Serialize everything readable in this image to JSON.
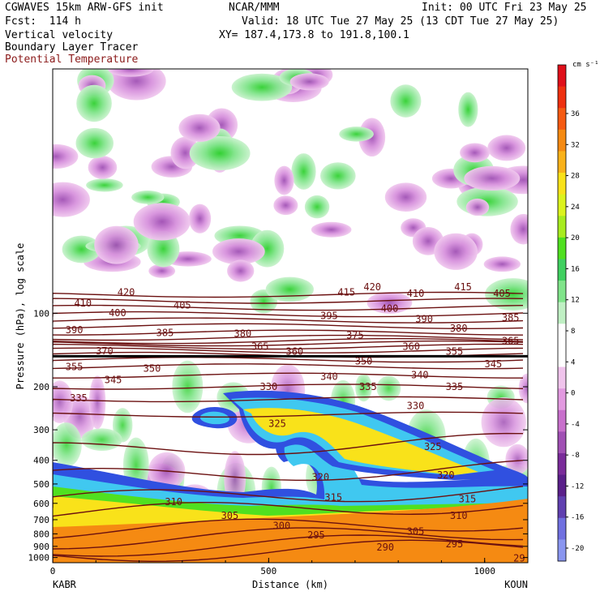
{
  "header": {
    "model": "CGWAVES 15km ARW-GFS init",
    "org": "NCAR/MMM",
    "init": "Init: 00 UTC Fri 23 May 25",
    "fcst": "Fcst:  114 h",
    "valid": "Valid: 18 UTC Tue 27 May 25 (13 CDT Tue 27 May 25)",
    "xy": "XY= 187.4,173.8 to 191.8,100.1",
    "fields": [
      "Vertical velocity",
      "Boundary Layer Tracer",
      "Potential Temperature"
    ],
    "field_colors": [
      "#000000",
      "#000000",
      "#8b1a1a"
    ]
  },
  "chart_data": {
    "type": "heatmap",
    "title": "",
    "xlabel": "Distance (km)",
    "ylabel": "Pressure (hPa), log scale",
    "x_ticks": [
      0,
      500,
      1000
    ],
    "xlim": [
      0,
      1100
    ],
    "y_scale": "log",
    "y_ticks": [
      100,
      200,
      300,
      400,
      500,
      600,
      700,
      800,
      900,
      1000
    ],
    "ylim": [
      1050,
      10
    ],
    "x_end_labels": {
      "left": "KABR",
      "right": "KOUN"
    },
    "colorbar": {
      "units": "cm s⁻¹",
      "tick_labels": [
        36,
        32,
        28,
        24,
        20,
        16,
        12,
        8,
        4,
        0,
        -4,
        -8,
        -12,
        -16,
        -20
      ],
      "colors": [
        "#e0101a",
        "#ee3010",
        "#f55a12",
        "#f58a12",
        "#f9b21a",
        "#f9e21a",
        "#dcf31e",
        "#a8ec20",
        "#50e020",
        "#40d060",
        "#80e48a",
        "#c0f0c4",
        "#ffffff",
        "#ffffff",
        "#f0c4ec",
        "#e29ae0",
        "#c870cc",
        "#a050b4",
        "#7a2c9a",
        "#5a208a",
        "#6040b0",
        "#7070e0",
        "#8a96f0"
      ]
    },
    "theta_contours": [
      {
        "value": 290,
        "p": 980
      },
      {
        "value": 295,
        "p": 925
      },
      {
        "value": 300,
        "p": 855
      },
      {
        "value": 305,
        "p": 780
      },
      {
        "value": 310,
        "p": 660
      },
      {
        "value": 315,
        "p": 580
      },
      {
        "value": 320,
        "p": 470
      },
      {
        "value": 325,
        "p": 365
      },
      {
        "value": 330,
        "p": 260
      },
      {
        "value": 335,
        "p": 225
      },
      {
        "value": 340,
        "p": 200
      },
      {
        "value": 345,
        "p": 180
      },
      {
        "value": 350,
        "p": 165
      },
      {
        "value": 355,
        "p": 155
      },
      {
        "value": 360,
        "p": 148
      },
      {
        "value": 365,
        "p": 142
      },
      {
        "value": 370,
        "p": 137
      },
      {
        "value": 375,
        "p": 133
      },
      {
        "value": 380,
        "p": 130
      },
      {
        "value": 385,
        "p": 126
      },
      {
        "value": 390,
        "p": 120
      },
      {
        "value": 395,
        "p": 113
      },
      {
        "value": 400,
        "p": 107
      },
      {
        "value": 405,
        "p": 101
      },
      {
        "value": 410,
        "p": 95
      },
      {
        "value": 415,
        "p": 89
      },
      {
        "value": 420,
        "p": 84
      }
    ],
    "contour_labels": [
      {
        "text": "420",
        "x": 170,
        "p": 84
      },
      {
        "text": "415",
        "x": 680,
        "p": 84
      },
      {
        "text": "420",
        "x": 740,
        "p": 80
      },
      {
        "text": "415",
        "x": 950,
        "p": 80
      },
      {
        "text": "410",
        "x": 70,
        "p": 93
      },
      {
        "text": "405",
        "x": 300,
        "p": 95
      },
      {
        "text": "410",
        "x": 840,
        "p": 85
      },
      {
        "text": "405",
        "x": 1040,
        "p": 85
      },
      {
        "text": "400",
        "x": 150,
        "p": 102
      },
      {
        "text": "395",
        "x": 640,
        "p": 105
      },
      {
        "text": "400",
        "x": 780,
        "p": 98
      },
      {
        "text": "390",
        "x": 860,
        "p": 108
      },
      {
        "text": "385",
        "x": 1060,
        "p": 107
      },
      {
        "text": "390",
        "x": 50,
        "p": 120
      },
      {
        "text": "385",
        "x": 260,
        "p": 123
      },
      {
        "text": "380",
        "x": 440,
        "p": 124
      },
      {
        "text": "375",
        "x": 700,
        "p": 126
      },
      {
        "text": "380",
        "x": 940,
        "p": 118
      },
      {
        "text": "365",
        "x": 1060,
        "p": 133
      },
      {
        "text": "370",
        "x": 120,
        "p": 146
      },
      {
        "text": "365",
        "x": 480,
        "p": 140
      },
      {
        "text": "360",
        "x": 560,
        "p": 147
      },
      {
        "text": "360",
        "x": 830,
        "p": 140
      },
      {
        "text": "355",
        "x": 930,
        "p": 147
      },
      {
        "text": "355",
        "x": 50,
        "p": 170
      },
      {
        "text": "350",
        "x": 230,
        "p": 172
      },
      {
        "text": "350",
        "x": 720,
        "p": 161
      },
      {
        "text": "345",
        "x": 1020,
        "p": 165
      },
      {
        "text": "345",
        "x": 140,
        "p": 192
      },
      {
        "text": "340",
        "x": 640,
        "p": 186
      },
      {
        "text": "340",
        "x": 850,
        "p": 183
      },
      {
        "text": "335",
        "x": 60,
        "p": 228
      },
      {
        "text": "330",
        "x": 500,
        "p": 205
      },
      {
        "text": "335",
        "x": 730,
        "p": 205
      },
      {
        "text": "335",
        "x": 930,
        "p": 205
      },
      {
        "text": "330",
        "x": 840,
        "p": 245
      },
      {
        "text": "325",
        "x": 520,
        "p": 290
      },
      {
        "text": "325",
        "x": 880,
        "p": 360
      },
      {
        "text": "320",
        "x": 620,
        "p": 480
      },
      {
        "text": "320",
        "x": 910,
        "p": 470
      },
      {
        "text": "315",
        "x": 650,
        "p": 580
      },
      {
        "text": "315",
        "x": 960,
        "p": 590
      },
      {
        "text": "310",
        "x": 280,
        "p": 605
      },
      {
        "text": "310",
        "x": 940,
        "p": 690
      },
      {
        "text": "305",
        "x": 410,
        "p": 690
      },
      {
        "text": "305",
        "x": 840,
        "p": 800
      },
      {
        "text": "300",
        "x": 530,
        "p": 760
      },
      {
        "text": "295",
        "x": 610,
        "p": 830
      },
      {
        "text": "295",
        "x": 930,
        "p": 900
      },
      {
        "text": "290",
        "x": 770,
        "p": 930
      },
      {
        "text": "29",
        "x": 1080,
        "p": 1030
      }
    ],
    "tropopause_p": 150
  }
}
